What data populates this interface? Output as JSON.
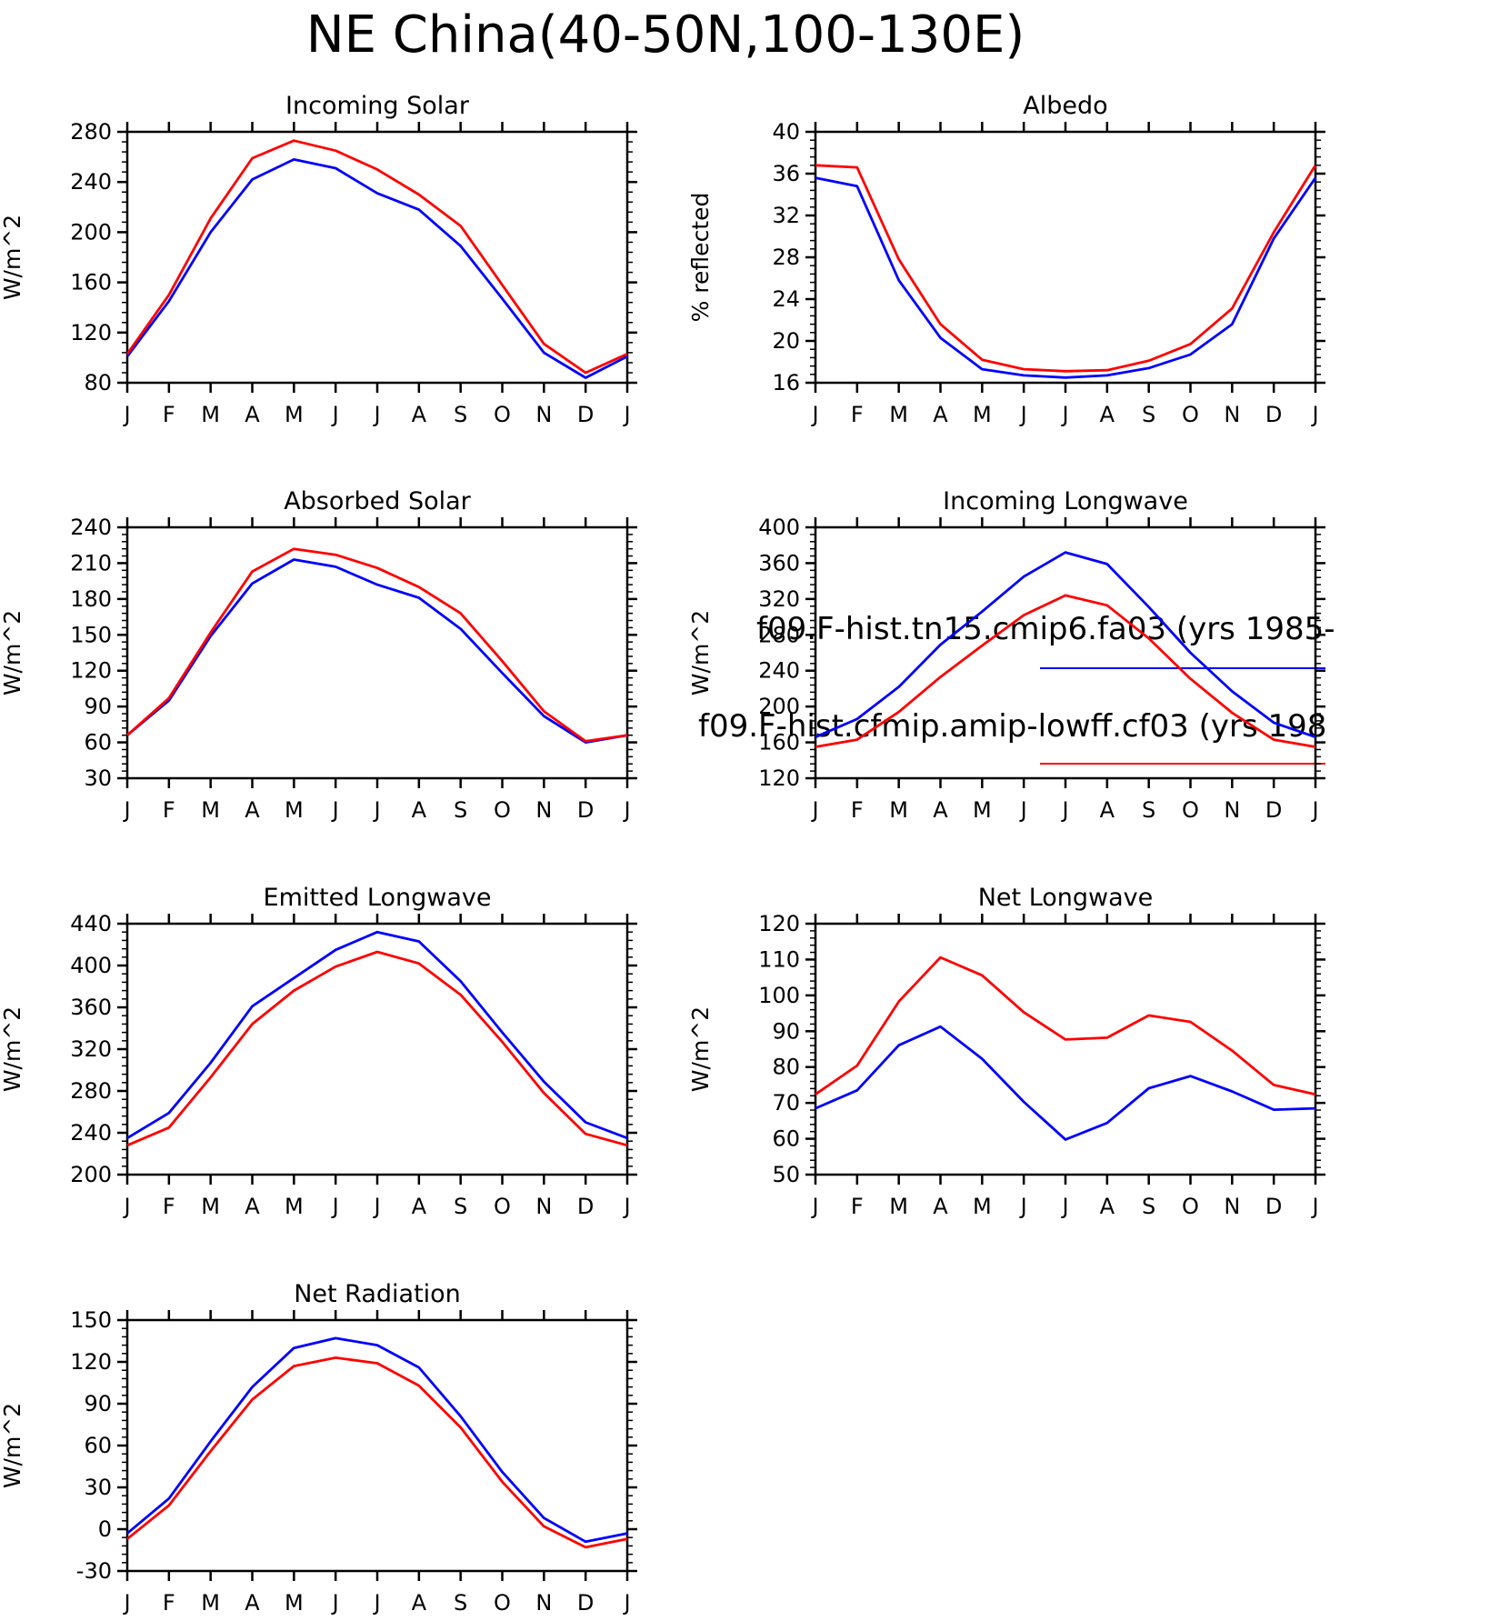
{
  "title": "NE China(40-50N,100-130E)",
  "colors": {
    "series1": "#0000ff",
    "series2": "#ff0000",
    "axis": "#000000"
  },
  "legend": {
    "entries": [
      {
        "label": "f09.F-hist.tn15.cmip6.fa03 (yrs 1985-",
        "color": "#0000ff"
      },
      {
        "label": "f09.F-hist.cfmip.amip-lowff.cf03 (yrs 198",
        "color": "#ff0000"
      }
    ]
  },
  "chart_data": [
    {
      "type": "line",
      "title": "Incoming Solar",
      "ylabel": "W/m^2",
      "categories": [
        "J",
        "F",
        "M",
        "A",
        "M",
        "J",
        "J",
        "A",
        "S",
        "O",
        "N",
        "D",
        "J"
      ],
      "ylim": [
        80,
        280
      ],
      "yticks": [
        80,
        120,
        160,
        200,
        240,
        280
      ],
      "series": [
        {
          "color": "#0000ff",
          "values": [
            101,
            145,
            200,
            242,
            258,
            251,
            231,
            218,
            189,
            147,
            104,
            84,
            101
          ]
        },
        {
          "color": "#ff0000",
          "values": [
            103,
            150,
            211,
            259,
            273,
            265,
            250,
            230,
            205,
            158,
            111,
            88,
            103
          ]
        }
      ]
    },
    {
      "type": "line",
      "title": "Albedo",
      "ylabel": "% reflected",
      "categories": [
        "J",
        "F",
        "M",
        "A",
        "M",
        "J",
        "J",
        "A",
        "S",
        "O",
        "N",
        "D",
        "J"
      ],
      "ylim": [
        16,
        40
      ],
      "yticks": [
        16,
        20,
        24,
        28,
        32,
        36,
        40
      ],
      "series": [
        {
          "color": "#0000ff",
          "values": [
            35.6,
            34.8,
            25.8,
            20.3,
            17.3,
            16.7,
            16.5,
            16.7,
            17.4,
            18.7,
            21.6,
            29.8,
            35.6
          ]
        },
        {
          "color": "#ff0000",
          "values": [
            36.8,
            36.6,
            27.8,
            21.6,
            18.2,
            17.3,
            17.1,
            17.2,
            18.1,
            19.7,
            23.1,
            30.4,
            36.8
          ]
        }
      ]
    },
    {
      "type": "line",
      "title": "Absorbed Solar",
      "ylabel": "W/m^2",
      "categories": [
        "J",
        "F",
        "M",
        "A",
        "M",
        "J",
        "J",
        "A",
        "S",
        "O",
        "N",
        "D",
        "J"
      ],
      "ylim": [
        30,
        240
      ],
      "yticks": [
        30,
        60,
        90,
        120,
        150,
        180,
        210,
        240
      ],
      "series": [
        {
          "color": "#0000ff",
          "values": [
            66,
            95,
            149,
            193,
            213,
            207,
            192,
            181,
            155,
            118,
            82,
            60,
            66
          ]
        },
        {
          "color": "#ff0000",
          "values": [
            66,
            97,
            152,
            203,
            222,
            217,
            206,
            190,
            168,
            128,
            86,
            61,
            66
          ]
        }
      ]
    },
    {
      "type": "line",
      "title": "Incoming Longwave",
      "ylabel": "W/m^2",
      "categories": [
        "J",
        "F",
        "M",
        "A",
        "M",
        "J",
        "J",
        "A",
        "S",
        "O",
        "N",
        "D",
        "J"
      ],
      "ylim": [
        120,
        400
      ],
      "yticks": [
        120,
        160,
        200,
        240,
        280,
        320,
        360,
        400
      ],
      "series": [
        {
          "color": "#0000ff",
          "values": [
            166,
            186,
            222,
            269,
            306,
            345,
            372,
            359,
            311,
            260,
            217,
            182,
            166
          ]
        },
        {
          "color": "#ff0000",
          "values": [
            155,
            163,
            194,
            233,
            268,
            302,
            324,
            313,
            276,
            231,
            193,
            163,
            155
          ]
        }
      ]
    },
    {
      "type": "line",
      "title": "Emitted Longwave",
      "ylabel": "W/m^2",
      "categories": [
        "J",
        "F",
        "M",
        "A",
        "M",
        "J",
        "J",
        "A",
        "S",
        "O",
        "N",
        "D",
        "J"
      ],
      "ylim": [
        200,
        440
      ],
      "yticks": [
        200,
        240,
        280,
        320,
        360,
        400,
        440
      ],
      "series": [
        {
          "color": "#0000ff",
          "values": [
            235,
            259,
            307,
            361,
            388,
            415,
            432,
            423,
            385,
            336,
            289,
            250,
            235
          ]
        },
        {
          "color": "#ff0000",
          "values": [
            228,
            245,
            293,
            344,
            376,
            399,
            413,
            402,
            372,
            327,
            278,
            239,
            228
          ]
        }
      ]
    },
    {
      "type": "line",
      "title": "Net Longwave",
      "ylabel": "W/m^2",
      "categories": [
        "J",
        "F",
        "M",
        "A",
        "M",
        "J",
        "J",
        "A",
        "S",
        "O",
        "N",
        "D",
        "J"
      ],
      "ylim": [
        50,
        120
      ],
      "yticks": [
        50,
        60,
        70,
        80,
        90,
        100,
        110,
        120
      ],
      "series": [
        {
          "color": "#0000ff",
          "values": [
            68.5,
            73.5,
            86.1,
            91.3,
            82.3,
            70.3,
            59.8,
            64.4,
            74.1,
            77.5,
            73.2,
            68.1,
            68.5
          ]
        },
        {
          "color": "#ff0000",
          "values": [
            72.4,
            80.4,
            98.3,
            110.6,
            105.6,
            95.3,
            87.7,
            88.2,
            94.4,
            92.6,
            84.6,
            75.0,
            72.4
          ]
        }
      ]
    },
    {
      "type": "line",
      "title": "Net Radiation",
      "ylabel": "W/m^2",
      "categories": [
        "J",
        "F",
        "M",
        "A",
        "M",
        "J",
        "J",
        "A",
        "S",
        "O",
        "N",
        "D",
        "J"
      ],
      "ylim": [
        -30,
        150
      ],
      "yticks": [
        -30,
        0,
        30,
        60,
        90,
        120,
        150
      ],
      "series": [
        {
          "color": "#0000ff",
          "values": [
            -3,
            22,
            63,
            102,
            130,
            137,
            132,
            116,
            81,
            41,
            8,
            -9,
            -3
          ]
        },
        {
          "color": "#ff0000",
          "values": [
            -7,
            17,
            56,
            93,
            117,
            123,
            119,
            103,
            73,
            34,
            2,
            -13,
            -7
          ]
        }
      ]
    }
  ]
}
